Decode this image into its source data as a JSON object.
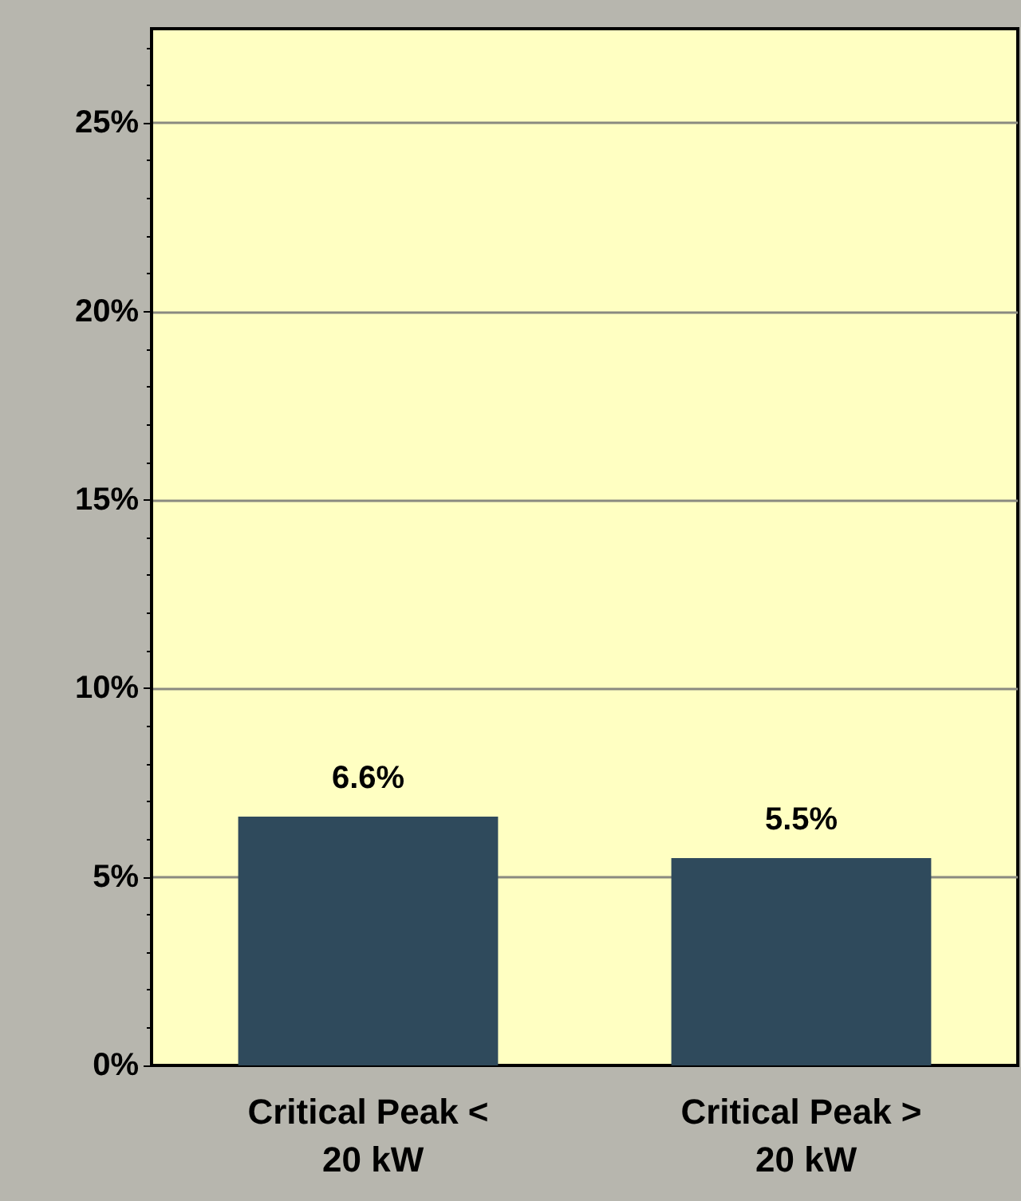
{
  "chart_data": {
    "type": "bar",
    "categories": [
      "Critical Peak < 20 kW",
      "Critical Peak > 20 kW"
    ],
    "values": [
      6.6,
      5.5
    ],
    "value_labels": [
      "6.6%",
      "5.5%"
    ],
    "color": "#2f4a5c",
    "ylim": [
      0,
      27.5
    ],
    "yticks": [
      {
        "value": 0,
        "label": "0%"
      },
      {
        "value": 5,
        "label": "5%"
      },
      {
        "value": 10,
        "label": "10%"
      },
      {
        "value": 15,
        "label": "15%"
      },
      {
        "value": 20,
        "label": "20%"
      },
      {
        "value": 25,
        "label": "25%"
      }
    ],
    "grid": "y"
  }
}
